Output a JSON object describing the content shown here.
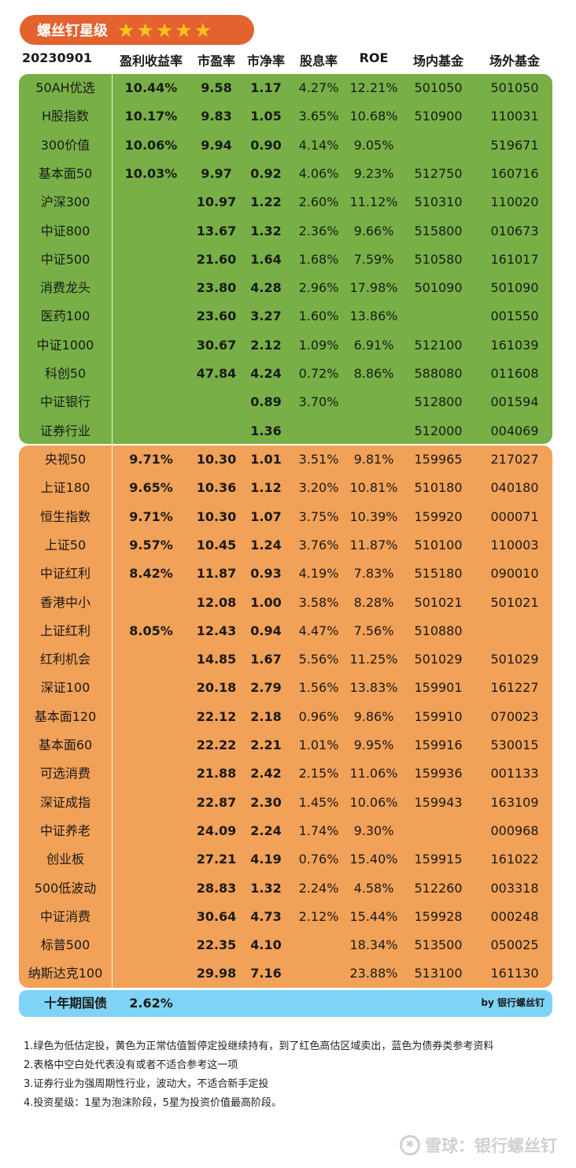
{
  "title": "螺丝钉星级",
  "stars": [
    "★",
    "★",
    "★",
    "★",
    "★"
  ],
  "headers": {
    "date": "20230901",
    "earnings_yield": "盈利收益率",
    "pe": "市盈率",
    "pb": "市净率",
    "dividend": "股息率",
    "roe": "ROE",
    "etf": "场内基金",
    "otc": "场外基金"
  },
  "green_rows": [
    {
      "name": "50AH优选",
      "ey": "10.44%",
      "pe": "9.58",
      "pb": "1.17",
      "div": "4.27%",
      "roe": "12.21%",
      "etf": "501050",
      "otc": "501050"
    },
    {
      "name": "H股指数",
      "ey": "10.17%",
      "pe": "9.83",
      "pb": "1.05",
      "div": "3.65%",
      "roe": "10.68%",
      "etf": "510900",
      "otc": "110031"
    },
    {
      "name": "300价值",
      "ey": "10.06%",
      "pe": "9.94",
      "pb": "0.90",
      "div": "4.14%",
      "roe": "9.05%",
      "etf": "",
      "otc": "519671"
    },
    {
      "name": "基本面50",
      "ey": "10.03%",
      "pe": "9.97",
      "pb": "0.92",
      "div": "4.06%",
      "roe": "9.23%",
      "etf": "512750",
      "otc": "160716"
    },
    {
      "name": "沪深300",
      "ey": "",
      "pe": "10.97",
      "pb": "1.22",
      "div": "2.60%",
      "roe": "11.12%",
      "etf": "510310",
      "otc": "110020"
    },
    {
      "name": "中证800",
      "ey": "",
      "pe": "13.67",
      "pb": "1.32",
      "div": "2.36%",
      "roe": "9.66%",
      "etf": "515800",
      "otc": "010673"
    },
    {
      "name": "中证500",
      "ey": "",
      "pe": "21.60",
      "pb": "1.64",
      "div": "1.68%",
      "roe": "7.59%",
      "etf": "510580",
      "otc": "161017"
    },
    {
      "name": "消费龙头",
      "ey": "",
      "pe": "23.80",
      "pb": "4.28",
      "div": "2.96%",
      "roe": "17.98%",
      "etf": "501090",
      "otc": "501090"
    },
    {
      "name": "医药100",
      "ey": "",
      "pe": "23.60",
      "pb": "3.27",
      "div": "1.60%",
      "roe": "13.86%",
      "etf": "",
      "otc": "001550"
    },
    {
      "name": "中证1000",
      "ey": "",
      "pe": "30.67",
      "pb": "2.12",
      "div": "1.09%",
      "roe": "6.91%",
      "etf": "512100",
      "otc": "161039"
    },
    {
      "name": "科创50",
      "ey": "",
      "pe": "47.84",
      "pb": "4.24",
      "div": "0.72%",
      "roe": "8.86%",
      "etf": "588080",
      "otc": "011608"
    },
    {
      "name": "中证银行",
      "ey": "",
      "pe": "",
      "pb": "0.89",
      "div": "3.70%",
      "roe": "",
      "etf": "512800",
      "otc": "001594"
    },
    {
      "name": "证券行业",
      "ey": "",
      "pe": "",
      "pb": "1.36",
      "div": "",
      "roe": "",
      "etf": "512000",
      "otc": "004069"
    }
  ],
  "orange_rows": [
    {
      "name": "央视50",
      "ey": "9.71%",
      "pe": "10.30",
      "pb": "1.01",
      "div": "3.51%",
      "roe": "9.81%",
      "etf": "159965",
      "otc": "217027"
    },
    {
      "name": "上证180",
      "ey": "9.65%",
      "pe": "10.36",
      "pb": "1.12",
      "div": "3.20%",
      "roe": "10.81%",
      "etf": "510180",
      "otc": "040180"
    },
    {
      "name": "恒生指数",
      "ey": "9.71%",
      "pe": "10.30",
      "pb": "1.07",
      "div": "3.75%",
      "roe": "10.39%",
      "etf": "159920",
      "otc": "000071"
    },
    {
      "name": "上证50",
      "ey": "9.57%",
      "pe": "10.45",
      "pb": "1.24",
      "div": "3.76%",
      "roe": "11.87%",
      "etf": "510100",
      "otc": "110003"
    },
    {
      "name": "中证红利",
      "ey": "8.42%",
      "pe": "11.87",
      "pb": "0.93",
      "div": "4.19%",
      "roe": "7.83%",
      "etf": "515180",
      "otc": "090010"
    },
    {
      "name": "香港中小",
      "ey": "",
      "pe": "12.08",
      "pb": "1.00",
      "div": "3.58%",
      "roe": "8.28%",
      "etf": "501021",
      "otc": "501021"
    },
    {
      "name": "上证红利",
      "ey": "8.05%",
      "pe": "12.43",
      "pb": "0.94",
      "div": "4.47%",
      "roe": "7.56%",
      "etf": "510880",
      "otc": ""
    },
    {
      "name": "红利机会",
      "ey": "",
      "pe": "14.85",
      "pb": "1.67",
      "div": "5.56%",
      "roe": "11.25%",
      "etf": "501029",
      "otc": "501029"
    },
    {
      "name": "深证100",
      "ey": "",
      "pe": "20.18",
      "pb": "2.79",
      "div": "1.56%",
      "roe": "13.83%",
      "etf": "159901",
      "otc": "161227"
    },
    {
      "name": "基本面120",
      "ey": "",
      "pe": "22.12",
      "pb": "2.18",
      "div": "0.96%",
      "roe": "9.86%",
      "etf": "159910",
      "otc": "070023"
    },
    {
      "name": "基本面60",
      "ey": "",
      "pe": "22.22",
      "pb": "2.21",
      "div": "1.01%",
      "roe": "9.95%",
      "etf": "159916",
      "otc": "530015"
    },
    {
      "name": "可选消费",
      "ey": "",
      "pe": "21.88",
      "pb": "2.42",
      "div": "2.15%",
      "roe": "11.06%",
      "etf": "159936",
      "otc": "001133"
    },
    {
      "name": "深证成指",
      "ey": "",
      "pe": "22.87",
      "pb": "2.30",
      "div": "1.45%",
      "roe": "10.06%",
      "etf": "159943",
      "otc": "163109"
    },
    {
      "name": "中证养老",
      "ey": "",
      "pe": "24.09",
      "pb": "2.24",
      "div": "1.74%",
      "roe": "9.30%",
      "etf": "",
      "otc": "000968"
    },
    {
      "name": "创业板",
      "ey": "",
      "pe": "27.21",
      "pb": "4.19",
      "div": "0.76%",
      "roe": "15.40%",
      "etf": "159915",
      "otc": "161022"
    },
    {
      "name": "500低波动",
      "ey": "",
      "pe": "28.83",
      "pb": "1.32",
      "div": "2.24%",
      "roe": "4.58%",
      "etf": "512260",
      "otc": "003318"
    },
    {
      "name": "中证消费",
      "ey": "",
      "pe": "30.64",
      "pb": "4.73",
      "div": "2.12%",
      "roe": "15.44%",
      "etf": "159928",
      "otc": "000248"
    },
    {
      "name": "标普500",
      "ey": "",
      "pe": "22.35",
      "pb": "4.10",
      "div": "",
      "roe": "18.34%",
      "etf": "513500",
      "otc": "050025"
    },
    {
      "name": "纳斯达克100",
      "ey": "",
      "pe": "29.98",
      "pb": "7.16",
      "div": "",
      "roe": "23.88%",
      "etf": "513100",
      "otc": "161130"
    }
  ],
  "bond": {
    "name": "十年期国债",
    "ey": "2.62%"
  },
  "credit": "by 银行螺丝钉",
  "notes": [
    "1.绿色为低估定投，黄色为正常估值暂停定投继续持有，到了红色高估区域卖出，蓝色为债券类参考资料",
    "2.表格中空白处代表没有或者不适合参考这一项",
    "3.证券行业为强周期性行业，波动大，不适合新手定投",
    "4.投资星级：1星为泡沫阶段，5星为投资价值最高阶段。"
  ],
  "watermark": "雪球：银行螺丝钉",
  "colors": {
    "green": "#78b047",
    "orange": "#f2a158",
    "blue": "#7fd3f6",
    "badge": "#e4622f",
    "star": "#f7c21b"
  }
}
